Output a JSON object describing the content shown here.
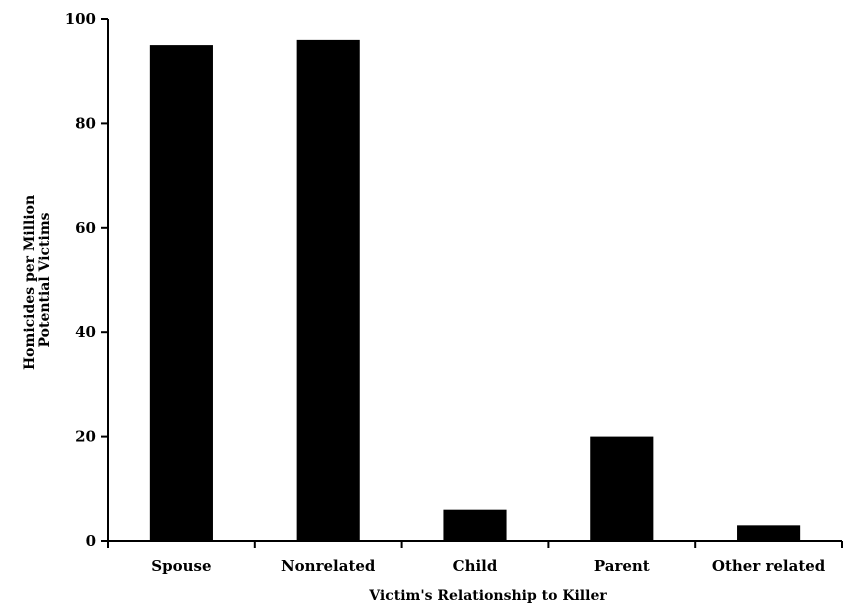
{
  "chart_data": {
    "type": "bar",
    "title": "",
    "xlabel": "Victim's Relationship to Killer",
    "ylabel_lines": [
      "Homicides per Million",
      "Potential Victims"
    ],
    "categories": [
      "Spouse",
      "Nonrelated",
      "Child",
      "Parent",
      "Other related"
    ],
    "values": [
      95,
      96,
      6,
      20,
      3
    ],
    "ylim": [
      0,
      100
    ],
    "yticks": [
      "0",
      "20",
      "40",
      "60",
      "80",
      "100"
    ],
    "grid": false,
    "legend": "none",
    "bar_color": "#000000"
  }
}
